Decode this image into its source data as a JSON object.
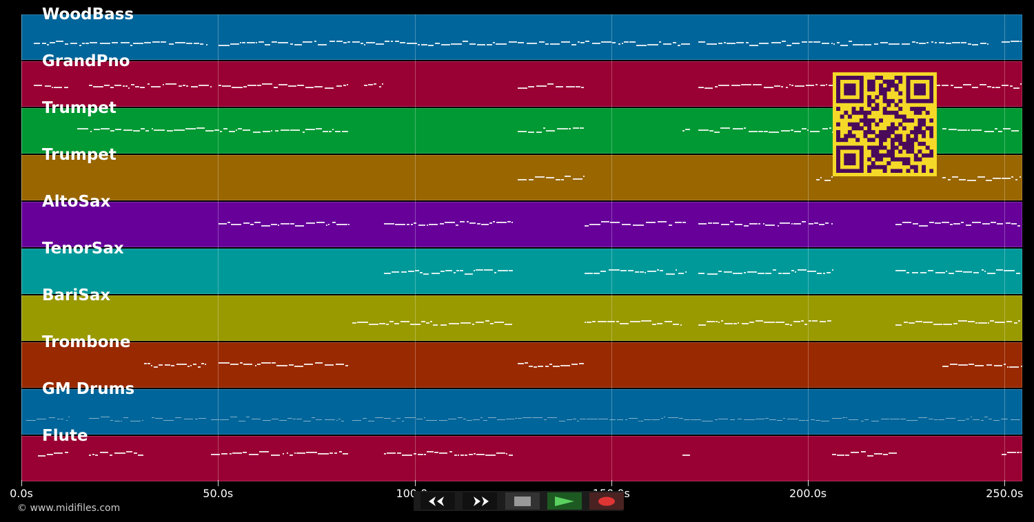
{
  "window": {
    "background": "#000000"
  },
  "timeline": {
    "duration_s": 254.5,
    "ticks": [
      {
        "t": 0,
        "label": "0.0s"
      },
      {
        "t": 50,
        "label": "50.0s"
      },
      {
        "t": 100,
        "label": "100.0s"
      },
      {
        "t": 150,
        "label": "150.0s"
      },
      {
        "t": 200,
        "label": "200.0s"
      },
      {
        "t": 250,
        "label": "250.0s"
      }
    ]
  },
  "tracks": [
    {
      "name": "WoodBass",
      "color": "#00659a",
      "phrases": [
        [
          3,
          47
        ],
        [
          50,
          84
        ],
        [
          84,
          170
        ],
        [
          172,
          246
        ],
        [
          249,
          254
        ]
      ],
      "y": 40
    },
    {
      "name": "GrandPno",
      "color": "#990033",
      "phrases": [
        [
          3,
          12
        ],
        [
          17,
          48
        ],
        [
          50,
          83
        ],
        [
          87,
          92
        ],
        [
          126,
          143
        ],
        [
          172,
          254
        ]
      ],
      "y": 34
    },
    {
      "name": "Trumpet",
      "color": "#009933",
      "phrases": [
        [
          14,
          83
        ],
        [
          126,
          143
        ],
        [
          168,
          170
        ],
        [
          172,
          206
        ],
        [
          234,
          254
        ]
      ],
      "y": 30
    },
    {
      "name": "Trumpet",
      "color": "#996600",
      "phrases": [
        [
          126,
          143
        ],
        [
          202,
          206
        ],
        [
          234,
          254
        ]
      ],
      "y": 32
    },
    {
      "name": "AltoSax",
      "color": "#660099",
      "phrases": [
        [
          50,
          83
        ],
        [
          92,
          125
        ],
        [
          143,
          169
        ],
        [
          172,
          206
        ],
        [
          222,
          254
        ]
      ],
      "y": 30
    },
    {
      "name": "TenorSax",
      "color": "#009999",
      "phrases": [
        [
          92,
          125
        ],
        [
          143,
          169
        ],
        [
          172,
          206
        ],
        [
          222,
          254
        ]
      ],
      "y": 32
    },
    {
      "name": "BariSax",
      "color": "#999900",
      "phrases": [
        [
          84,
          125
        ],
        [
          143,
          168
        ],
        [
          172,
          206
        ],
        [
          222,
          254
        ]
      ],
      "y": 38
    },
    {
      "name": "Trombone",
      "color": "#992900",
      "phrases": [
        [
          31,
          47
        ],
        [
          50,
          83
        ],
        [
          126,
          143
        ],
        [
          234,
          254
        ]
      ],
      "y": 31
    },
    {
      "name": "GM Drums",
      "color": "#00659a",
      "phrases": [
        [
          1,
          12
        ],
        [
          17,
          31
        ],
        [
          33,
          47
        ],
        [
          48,
          82
        ],
        [
          84,
          92
        ],
        [
          92,
          254
        ]
      ],
      "y": 42
    },
    {
      "name": "Flute",
      "color": "#990033",
      "phrases": [
        [
          4,
          12
        ],
        [
          17,
          31
        ],
        [
          48,
          83
        ],
        [
          92,
          125
        ],
        [
          168,
          170
        ],
        [
          206,
          223
        ],
        [
          249,
          254
        ]
      ],
      "y": 24
    }
  ],
  "transport": {
    "buttons": [
      {
        "name": "rewind",
        "icon": "rewind-icon"
      },
      {
        "name": "fast-forward",
        "icon": "fast-forward-icon"
      },
      {
        "name": "stop",
        "icon": "stop-icon"
      },
      {
        "name": "play",
        "icon": "play-icon"
      },
      {
        "name": "record",
        "icon": "record-icon"
      }
    ]
  },
  "footer": {
    "copyright": "© www.midifiles.com"
  },
  "qr": {
    "fg": "#4a0a5a",
    "bg": "#f5d928"
  }
}
